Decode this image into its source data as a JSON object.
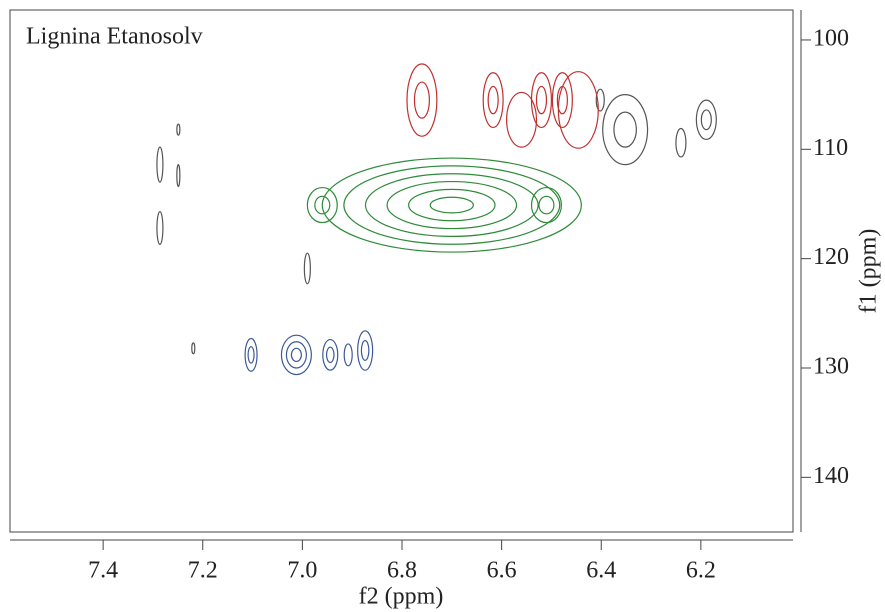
{
  "chart_data": {
    "type": "contour",
    "title": "Lignina Etanosolv",
    "x_label": "f2 (ppm)",
    "y_label": "f1 (ppm)",
    "xlim": [
      7.587,
      6.015
    ],
    "ylim": [
      97.26,
      145.0
    ],
    "xticks": [
      7.4,
      7.2,
      {
        "value": 7,
        "label": "7.0"
      },
      6.8,
      6.6,
      6.4,
      6.2
    ],
    "yticks": [
      100,
      110,
      120,
      130,
      140
    ],
    "series": [
      {
        "color": "#555555",
        "x": [
          7.286,
          7.286,
          7.249,
          7.249,
          6.99,
          7.219,
          6.402,
          6.352,
          6.24,
          6.189
        ],
        "y": [
          111.4,
          117.2,
          108.2,
          112.4,
          120.9,
          128.2,
          105.5,
          108.2,
          109.4,
          107.3
        ],
        "dx": [
          0.006,
          0.006,
          0.003,
          0.003,
          0.006,
          0.003,
          0.008,
          0.045,
          0.01,
          0.02
        ],
        "dy": [
          1.6,
          1.5,
          0.5,
          1.0,
          1.4,
          0.5,
          1.0,
          3.2,
          1.3,
          1.8
        ],
        "levels": [
          1,
          1,
          1,
          1,
          1,
          1,
          1,
          2,
          1,
          2
        ]
      },
      {
        "color": "#c0302e",
        "x": [
          6.76,
          6.617,
          6.52,
          6.478,
          6.446,
          6.56
        ],
        "y": [
          105.5,
          105.5,
          105.5,
          105.5,
          106.4,
          107.3
        ],
        "dx": [
          0.03,
          0.02,
          0.02,
          0.02,
          0.04,
          0.03
        ],
        "dy": [
          3.3,
          2.5,
          2.5,
          2.5,
          3.5,
          2.5
        ],
        "levels": [
          2,
          2,
          2,
          2,
          1,
          1
        ]
      },
      {
        "color": "#2e8b3a",
        "x": [
          6.7,
          6.96,
          6.51
        ],
        "y": [
          115.1,
          115.1,
          115.1
        ],
        "dx": [
          0.26,
          0.03,
          0.03
        ],
        "dy": [
          4.3,
          1.6,
          1.6
        ],
        "levels": [
          6,
          2,
          2
        ]
      },
      {
        "color": "#3b5998",
        "x": [
          7.103,
          7.012,
          6.944,
          6.908,
          6.874
        ],
        "y": [
          128.8,
          128.8,
          128.8,
          128.8,
          128.4
        ],
        "dx": [
          0.012,
          0.03,
          0.015,
          0.008,
          0.015
        ],
        "dy": [
          1.5,
          1.8,
          1.4,
          1.0,
          1.8
        ],
        "levels": [
          2,
          3,
          2,
          1,
          2
        ]
      }
    ]
  }
}
